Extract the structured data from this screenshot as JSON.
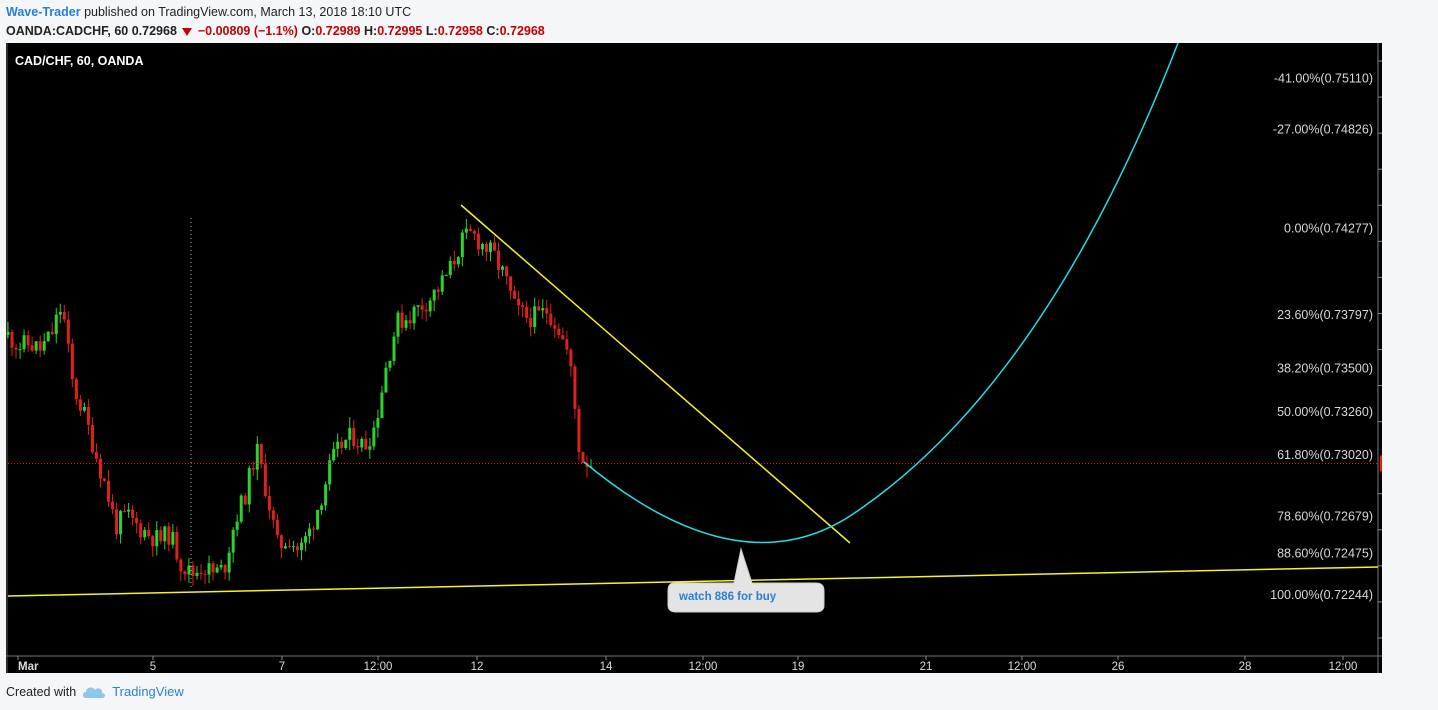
{
  "header": {
    "author": "Wave-Trader",
    "published": "published on TradingView.com, March 13, 2018 18:10 UTC",
    "symbol": "OANDA:CADCHF, 60",
    "last": "0.72968",
    "change": "−0.00809 (−1.1%)",
    "o_label": "O:",
    "o_value": "0.72989",
    "h_label": "H:",
    "h_value": "0.72995",
    "l_label": "L:",
    "l_value": "0.72958",
    "c_label": "C:",
    "c_value": "0.72968"
  },
  "footer": {
    "created_with": "Created with",
    "brand": "TradingView"
  },
  "colors": {
    "background": "#000000",
    "up": "#2bd42b",
    "down": "#e01f1f",
    "trendline": "#f5f523",
    "curve": "#22dde6",
    "price_tag": "#ff1111"
  },
  "chart_data": {
    "type": "candlestick",
    "title": "CAD/CHF, 60, OANDA",
    "ylim": [
      0.719,
      0.753
    ],
    "yticks": [
      "0.75200",
      "0.75000",
      "0.74800",
      "0.74600",
      "0.74400",
      "0.74200",
      "0.74000",
      "0.73800",
      "0.73600",
      "0.73400",
      "0.73200",
      "0.72800",
      "0.72600",
      "0.72400",
      "0.72200",
      "0.72000"
    ],
    "xticks": [
      "Mar",
      "5",
      "7",
      "12:00",
      "12",
      "14",
      "12:00",
      "19",
      "21",
      "12:00",
      "26",
      "28",
      "12:00"
    ],
    "last_price": "0.72968",
    "fib_levels": [
      {
        "label": "-41.00%(0.75110)",
        "price": 0.7511
      },
      {
        "label": "-27.00%(0.74826)",
        "price": 0.74826
      },
      {
        "label": "0.00%(0.74277)",
        "price": 0.74277
      },
      {
        "label": "23.60%(0.73797)",
        "price": 0.73797
      },
      {
        "label": "38.20%(0.73500)",
        "price": 0.735
      },
      {
        "label": "50.00%(0.73260)",
        "price": 0.7326
      },
      {
        "label": "61.80%(0.73020)",
        "price": 0.7302
      },
      {
        "label": "78.60%(0.72679)",
        "price": 0.72679
      },
      {
        "label": "88.60%(0.72475)",
        "price": 0.72475
      },
      {
        "label": "100.00%(0.72244)",
        "price": 0.72244
      }
    ],
    "annotation": "watch 886 for buy",
    "price_path": [
      0.7368,
      0.7362,
      0.7363,
      0.736,
      0.7368,
      0.7385,
      0.734,
      0.7325,
      0.7305,
      0.7285,
      0.7262,
      0.7268,
      0.7262,
      0.7258,
      0.7254,
      0.7258,
      0.7242,
      0.7235,
      0.724,
      0.7236,
      0.7238,
      0.7265,
      0.728,
      0.7305,
      0.728,
      0.725,
      0.7256,
      0.7248,
      0.726,
      0.7278,
      0.7298,
      0.7308,
      0.7312,
      0.7306,
      0.7318,
      0.735,
      0.7375,
      0.7378,
      0.7383,
      0.7388,
      0.7395,
      0.7405,
      0.742,
      0.7424,
      0.7418,
      0.7412,
      0.74,
      0.7382,
      0.7378,
      0.7378,
      0.7382,
      0.7372,
      0.7355,
      0.73,
      0.7297
    ]
  }
}
